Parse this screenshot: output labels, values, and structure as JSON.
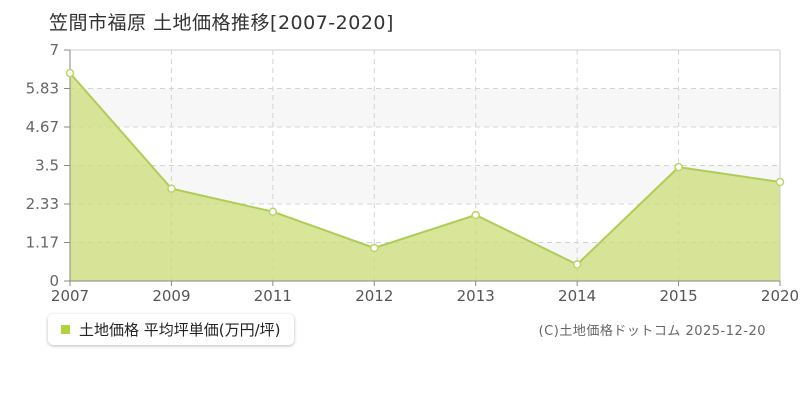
{
  "page": {
    "title": "笠間市福原 土地価格推移[2007-2020]",
    "copyright": "(C)土地価格ドットコム 2025-12-20"
  },
  "legend": {
    "label": "土地価格 平均坪単価(万円/坪)",
    "marker_color": "#b1d43e"
  },
  "chart_data": {
    "type": "area",
    "title": "笠間市福原 土地価格推移[2007-2020]",
    "categories": [
      "2007",
      "2009",
      "2011",
      "2012",
      "2013",
      "2014",
      "2015",
      "2020"
    ],
    "series": [
      {
        "name": "土地価格 平均坪単価(万円/坪)",
        "values": [
          6.3,
          2.8,
          2.1,
          1.0,
          2.0,
          0.5,
          3.45,
          3.0
        ]
      }
    ],
    "xlabel": "",
    "ylabel": "",
    "unit": "万円/坪",
    "ylim": [
      0,
      7
    ],
    "y_tick_labels": [
      "0",
      "1.17",
      "2.33",
      "3.5",
      "4.67",
      "5.83",
      "7"
    ],
    "grid": true,
    "grid_style": "dashed",
    "legend_position": "bottom-left",
    "colors": {
      "area_fill": "#ccde78",
      "area_opacity": 0.75,
      "line": "#b0cc56",
      "marker_fill": "#ffffff",
      "marker_stroke": "#bcd568",
      "grid": "#d4d4d4",
      "axis": "#888888",
      "border": "#cccccc",
      "band_alt": "#f7f7f7",
      "tick_text": "#666666"
    }
  }
}
